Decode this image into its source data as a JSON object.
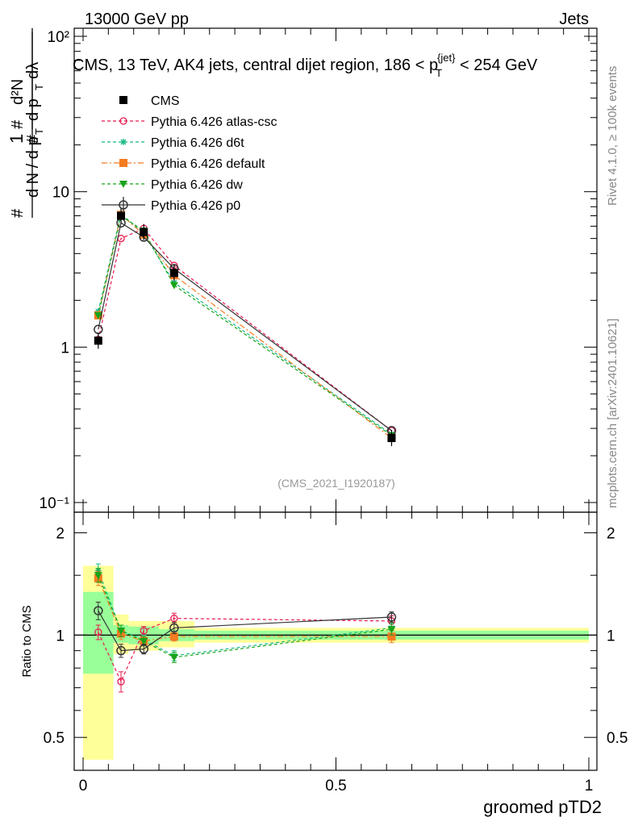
{
  "header": {
    "left": "13000 GeV pp",
    "right": "Jets"
  },
  "side_labels": {
    "rivet": "Rivet 4.1.0, ≥ 100k events",
    "mcplots": "mcplots.cern.ch [arXiv:2401.10621]"
  },
  "chart_data": {
    "type": "line",
    "title": "CMS, 13 TeV, AK4 jets, central dijet region, 186 < p_T^{jet} < 254 GeV",
    "analysis_label": "(CMS_2021_I1920187)",
    "xlabel": "groomed pTD2",
    "ylabel": "1/(dN/dp_T) · d²N/(dp_T dλ)",
    "ratio_ylabel": "Ratio to CMS",
    "xlim": [
      0,
      1
    ],
    "ylim_log": [
      0.1,
      100
    ],
    "ratio_ylim": [
      0.4,
      2.3
    ],
    "x_ticks": [
      "0",
      "0.5",
      "1"
    ],
    "y_ticks": [
      "10⁻¹",
      "1",
      "10",
      "10²"
    ],
    "ratio_ticks": [
      "0.5",
      "1",
      "2"
    ],
    "bins": [
      {
        "lo": 0.0,
        "hi": 0.06
      },
      {
        "lo": 0.06,
        "hi": 0.09
      },
      {
        "lo": 0.09,
        "hi": 0.15
      },
      {
        "lo": 0.15,
        "hi": 0.22
      },
      {
        "lo": 0.22,
        "hi": 1.0
      }
    ],
    "ratio_bands": {
      "total": [
        [
          0.43,
          1.6
        ],
        [
          0.88,
          1.15
        ],
        [
          0.9,
          1.1
        ],
        [
          0.92,
          1.1
        ],
        [
          0.95,
          1.05
        ]
      ],
      "stat": [
        [
          0.77,
          1.34
        ],
        [
          0.95,
          1.07
        ],
        [
          0.94,
          1.06
        ],
        [
          0.96,
          1.04
        ],
        [
          0.97,
          1.03
        ]
      ]
    },
    "legend": [
      {
        "label": "CMS",
        "color": "#000000",
        "marker": "square"
      },
      {
        "label": "Pythia 6.426 atlas-csc",
        "color": "#e8194f",
        "marker": "circle-open",
        "dash": "4,3"
      },
      {
        "label": "Pythia 6.426 d6t",
        "color": "#17b884",
        "marker": "star",
        "dash": "4,3"
      },
      {
        "label": "Pythia 6.426 default",
        "color": "#f47b20",
        "marker": "square",
        "dash": "7,3,2,3"
      },
      {
        "label": "Pythia 6.426 dw",
        "color": "#19a319",
        "marker": "triangle-down",
        "dash": "4,3"
      },
      {
        "label": "Pythia 6.426 p0",
        "color": "#333333",
        "marker": "circle-open-large",
        "dash": ""
      }
    ],
    "data": {
      "x": [
        0.03,
        0.075,
        0.12,
        0.18,
        0.61
      ],
      "y": [
        1.1,
        7.0,
        5.5,
        3.0,
        0.26
      ]
    },
    "series": [
      {
        "name": "Pythia 6.426 atlas-csc",
        "x": [
          0.03,
          0.075,
          0.12,
          0.18,
          0.61
        ],
        "y": [
          1.12,
          5.0,
          5.8,
          3.35,
          0.29
        ],
        "ratio": [
          1.02,
          0.73,
          1.03,
          1.12,
          1.1
        ],
        "ratio_err": [
          0.05,
          0.05,
          0.03,
          0.04,
          0.04
        ]
      },
      {
        "name": "Pythia 6.426 d6t",
        "x": [
          0.03,
          0.075,
          0.12,
          0.18,
          0.61
        ],
        "y": [
          1.7,
          7.2,
          5.4,
          2.6,
          0.275
        ],
        "ratio": [
          1.55,
          1.03,
          0.97,
          0.87,
          1.05
        ],
        "ratio_err": [
          0.07,
          0.04,
          0.03,
          0.03,
          0.04
        ]
      },
      {
        "name": "Pythia 6.426 default",
        "x": [
          0.03,
          0.075,
          0.12,
          0.18,
          0.61
        ],
        "y": [
          1.6,
          7.1,
          5.3,
          2.9,
          0.26
        ],
        "ratio": [
          1.47,
          1.01,
          0.96,
          0.99,
          0.99
        ],
        "ratio_err": [
          0.07,
          0.04,
          0.03,
          0.03,
          0.04
        ]
      },
      {
        "name": "Pythia 6.426 dw",
        "x": [
          0.03,
          0.075,
          0.12,
          0.18,
          0.61
        ],
        "y": [
          1.6,
          7.0,
          5.6,
          2.5,
          0.27
        ],
        "ratio": [
          1.5,
          1.03,
          0.96,
          0.86,
          1.04
        ],
        "ratio_err": [
          0.07,
          0.04,
          0.03,
          0.03,
          0.04
        ]
      },
      {
        "name": "Pythia 6.426 p0",
        "x": [
          0.03,
          0.075,
          0.12,
          0.18,
          0.61
        ],
        "y": [
          1.3,
          6.3,
          5.1,
          3.2,
          0.29
        ],
        "ratio": [
          1.18,
          0.9,
          0.91,
          1.05,
          1.13
        ],
        "ratio_err": [
          0.07,
          0.04,
          0.03,
          0.04,
          0.04
        ]
      }
    ]
  }
}
